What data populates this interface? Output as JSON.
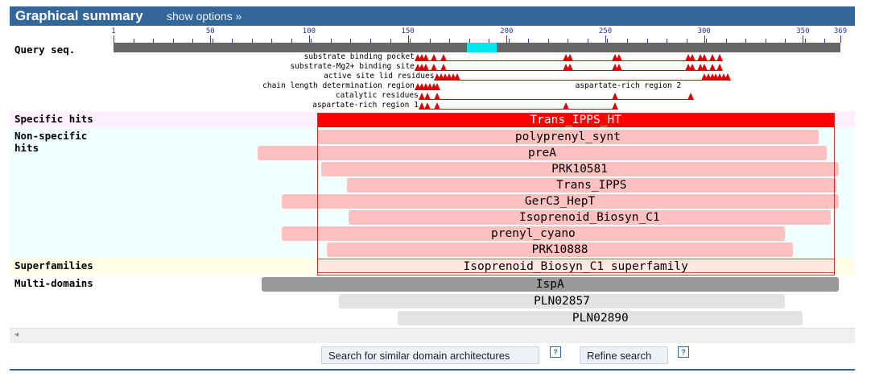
{
  "header": {
    "title": "Graphical summary",
    "options_link": "show options »"
  },
  "ruler": {
    "label": "Query seq.",
    "ticks": [
      {
        "label": "1",
        "pos": 1
      },
      {
        "label": "50",
        "pos": 50
      },
      {
        "label": "100",
        "pos": 100
      },
      {
        "label": "150",
        "pos": 150
      },
      {
        "label": "200",
        "pos": 200
      },
      {
        "label": "250",
        "pos": 250
      },
      {
        "label": "300",
        "pos": 300
      },
      {
        "label": "350",
        "pos": 350
      },
      {
        "label": "369",
        "pos": 369
      }
    ],
    "highlight_range": [
      180,
      195
    ]
  },
  "features": [
    {
      "label": "substrate binding pocket",
      "marks": [
        155,
        157,
        159,
        163,
        168,
        230,
        232,
        255,
        257,
        292,
        294,
        298,
        300,
        304,
        308
      ]
    },
    {
      "label": "substrate-Mg2+ binding site",
      "marks": [
        155,
        157,
        159,
        163,
        168,
        230,
        232,
        255,
        257,
        292,
        294,
        298,
        300,
        304,
        308
      ]
    },
    {
      "label": "active site lid residues",
      "marks": [
        165,
        167,
        169,
        171,
        173,
        175,
        300,
        302,
        304,
        306,
        308,
        310,
        312
      ]
    },
    {
      "label": "chain length determination region",
      "marks": [
        155,
        157,
        159,
        161,
        163,
        165
      ]
    },
    {
      "label": "catalytic residues",
      "marks": [
        157,
        160,
        165,
        255,
        293
      ]
    },
    {
      "label": "aspartate-rich region 1",
      "marks": [
        157,
        160,
        165,
        230,
        255
      ]
    }
  ],
  "feature_extra_label": "aspartate-rich region 2",
  "sections": {
    "specific": "Specific hits",
    "nonspecific": "Non-specific hits",
    "superfamilies": "Superfamilies",
    "multidomains": "Multi-domains"
  },
  "specific_hits": [
    {
      "name": "Trans_IPPS_HT",
      "from": 104,
      "to": 366
    }
  ],
  "nonspecific_hits": [
    {
      "name": "polyprenyl_synt",
      "from": 104,
      "to": 358
    },
    {
      "name": "preA",
      "from": 74,
      "to": 362
    },
    {
      "name": "PRK10581",
      "from": 106,
      "to": 368
    },
    {
      "name": "Trans_IPPS",
      "from": 119,
      "to": 367
    },
    {
      "name": "GerC3_HepT",
      "from": 86,
      "to": 368
    },
    {
      "name": "Isoprenoid_Biosyn_C1",
      "from": 120,
      "to": 364
    },
    {
      "name": "prenyl_cyano",
      "from": 86,
      "to": 341
    },
    {
      "name": "PRK10888",
      "from": 109,
      "to": 345
    }
  ],
  "superfamilies": [
    {
      "name": "Isoprenoid_Biosyn_C1 superfamily",
      "from": 104,
      "to": 366
    }
  ],
  "multidomains": [
    {
      "name": "IspA",
      "from": 76,
      "to": 368,
      "style": "multi"
    },
    {
      "name": "PLN02857",
      "from": 115,
      "to": 341,
      "style": "multi2"
    },
    {
      "name": "PLN02890",
      "from": 145,
      "to": 350,
      "style": "multi2"
    }
  ],
  "buttons": {
    "search_similar": "Search for similar domain architectures",
    "refine": "Refine search",
    "help": "?"
  }
}
